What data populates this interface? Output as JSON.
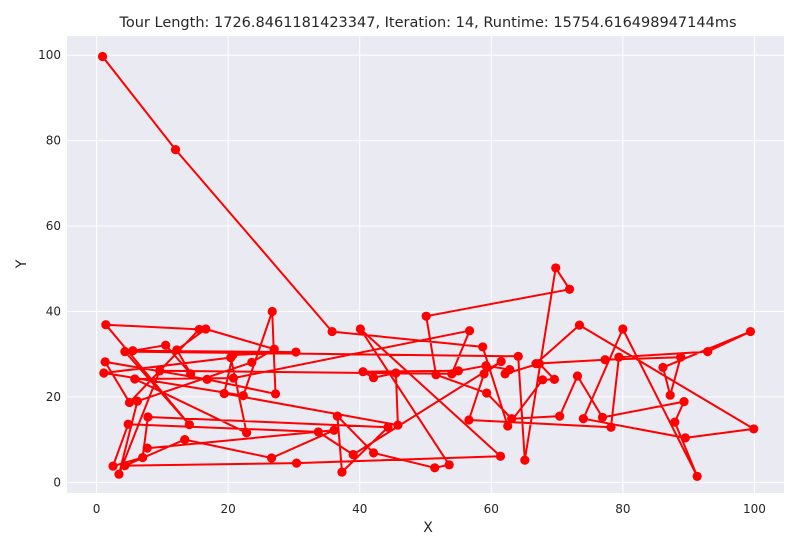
{
  "chart_data": {
    "type": "line",
    "title": "Tour Length: 1726.8461181423347, Iteration: 14, Runtime: 15754.616498947144ms",
    "xlabel": "X",
    "ylabel": "Y",
    "xlim": [
      -4.5,
      104.5
    ],
    "ylim": [
      -2.5,
      104.5
    ],
    "xticks": [
      0,
      20,
      40,
      60,
      80,
      100
    ],
    "yticks": [
      0,
      20,
      40,
      60,
      80,
      100
    ],
    "grid": true,
    "background": "#eaeaf2",
    "line_color": "#ff0000",
    "marker": "circle",
    "series": [
      {
        "x": [
          0.9,
          12.0,
          35.8,
          58.7,
          62.5,
          67.8,
          69.6,
          67.3,
          62.1,
          62.8,
          59.2,
          55.0,
          40.5,
          42.1,
          45.5,
          45.8,
          19.4,
          20.7,
          30.3,
          5.5,
          10.5,
          14.3,
          12.2,
          16.6,
          27.0,
          23.6,
          6.2,
          3.4,
          9.6,
          54.0,
          56.7,
          20.8,
          5.8,
          22.8,
          20.4,
          1.1,
          22.3,
          26.7,
          27.2,
          16.8,
          1.3,
          5.0,
          15.6,
          1.4,
          14.1,
          4.3,
          64.1,
          65.1,
          69.8,
          71.9,
          50.1,
          51.6,
          59.3,
          63.1,
          70.4,
          73.1,
          76.9,
          89.3,
          87.9,
          91.3,
          80.0,
          74.0,
          89.5,
          99.9,
          73.4,
          66.8,
          77.3,
          88.8,
          87.2,
          86.1,
          99.4,
          92.9,
          79.4,
          78.2,
          56.6,
          58.9,
          61.5,
          39.0,
          33.7,
          4.8,
          2.5,
          7.0,
          7.8,
          44.3,
          37.3,
          36.6,
          42.1,
          51.4,
          53.6,
          40.1,
          61.4,
          30.4,
          4.3,
          13.4,
          26.6,
          36.1,
          7.7
        ],
        "y": [
          99.7,
          77.9,
          35.3,
          31.7,
          13.2,
          24.0,
          24.1,
          27.8,
          25.4,
          26.4,
          27.3,
          26.1,
          25.9,
          24.5,
          25.6,
          13.4,
          20.8,
          29.8,
          30.5,
          30.8,
          32.1,
          25.4,
          31.0,
          35.9,
          31.2,
          28.1,
          19.0,
          1.9,
          26.1,
          25.4,
          35.5,
          24.4,
          24.2,
          11.6,
          29.2,
          25.6,
          20.3,
          40.0,
          20.7,
          24.1,
          28.2,
          18.7,
          35.8,
          36.9,
          13.5,
          30.6,
          29.5,
          5.2,
          50.2,
          45.2,
          38.9,
          25.2,
          20.9,
          14.9,
          15.5,
          24.9,
          15.2,
          18.9,
          14.1,
          1.4,
          35.9,
          14.9,
          10.4,
          12.5,
          36.8,
          27.8,
          28.7,
          29.3,
          20.4,
          26.9,
          35.3,
          30.6,
          29.3,
          12.9,
          14.6,
          25.4,
          28.3,
          6.5,
          11.8,
          13.6,
          3.8,
          5.8,
          15.3,
          12.9,
          2.4,
          15.5,
          6.9,
          3.4,
          4.1,
          35.9,
          6.1,
          4.5,
          3.9,
          10.0,
          5.7,
          12.2,
          8.0
        ]
      }
    ]
  }
}
